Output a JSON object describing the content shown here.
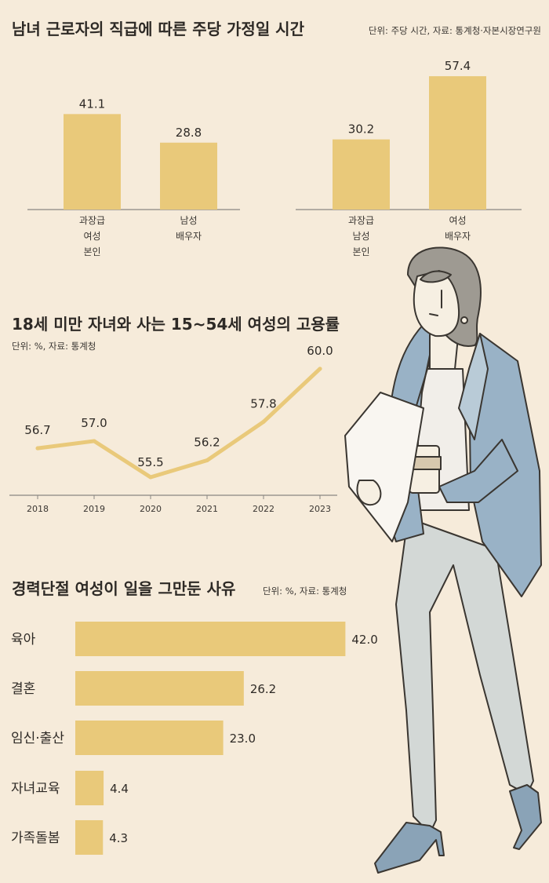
{
  "colors": {
    "background": "#f6ebda",
    "bar": "#e9c97a",
    "line": "#e9c97a",
    "axis": "#8a8782"
  },
  "chart_data": [
    {
      "type": "bar",
      "title": "남녀 근로자의 직급에 따른 주당 가정일 시간",
      "note": "단위: 주당 시간, 자료: 통계청·자본시장연구원",
      "panels": [
        {
          "categories": [
            [
              "과장급",
              "여성",
              "본인"
            ],
            [
              "남성",
              "배우자"
            ]
          ],
          "values": [
            41.1,
            28.8
          ],
          "labels": [
            "41.1",
            "28.8"
          ]
        },
        {
          "categories": [
            [
              "과장급",
              "남성",
              "본인"
            ],
            [
              "여성",
              "배우자"
            ]
          ],
          "values": [
            30.2,
            57.4
          ],
          "labels": [
            "30.2",
            "57.4"
          ]
        }
      ],
      "ylim": [
        0,
        60
      ]
    },
    {
      "type": "line",
      "title": "18세 미만 자녀와 사는 15~54세 여성의 고용률",
      "note": "단위: %, 자료: 통계청",
      "x": [
        "2018",
        "2019",
        "2020",
        "2021",
        "2022",
        "2023"
      ],
      "values": [
        56.7,
        57.0,
        55.5,
        56.2,
        57.8,
        60.0
      ],
      "labels": [
        "56.7",
        "57.0",
        "55.5",
        "56.2",
        "57.8",
        "60.0"
      ]
    },
    {
      "type": "bar",
      "orientation": "horizontal",
      "title": "경력단절 여성이 일을 그만둔 사유",
      "note": "단위: %, 자료: 통계청",
      "categories": [
        "육아",
        "결혼",
        "임신·출산",
        "자녀교육",
        "가족돌봄"
      ],
      "values": [
        42.0,
        26.2,
        23.0,
        4.4,
        4.3
      ],
      "labels": [
        "42.0",
        "26.2",
        "23.0",
        "4.4",
        "4.3"
      ]
    }
  ]
}
